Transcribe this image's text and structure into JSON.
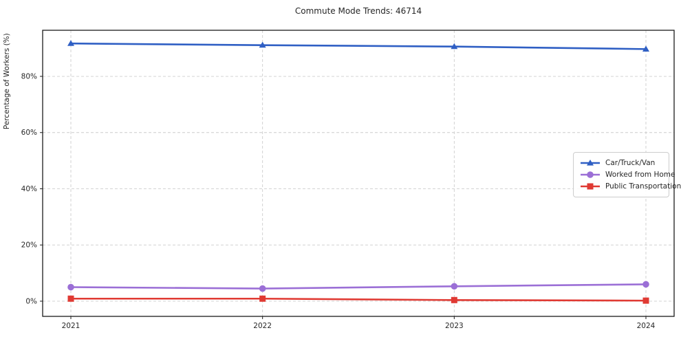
{
  "chart_data": {
    "type": "line",
    "title": "Commute Mode Trends: 46714",
    "xlabel": "",
    "ylabel": "Percentage of Workers (%)",
    "x": [
      2021,
      2022,
      2023,
      2024
    ],
    "xtick_labels": [
      "2021",
      "2022",
      "2023",
      "2024"
    ],
    "yticks": [
      0,
      20,
      40,
      60,
      80
    ],
    "ytick_labels": [
      "0%",
      "20%",
      "40%",
      "60%",
      "80%"
    ],
    "ylim": [
      -5.4,
      96.4
    ],
    "grid": true,
    "grid_style": "dashed",
    "legend_position": "middle-right",
    "series": [
      {
        "name": "Car/Truck/Van",
        "values": [
          91.7,
          91.1,
          90.6,
          89.7
        ],
        "color": "#2f5fc4",
        "marker": "triangle"
      },
      {
        "name": "Worked from Home",
        "values": [
          5.0,
          4.5,
          5.3,
          6.0
        ],
        "color": "#9b6fd6",
        "marker": "circle"
      },
      {
        "name": "Public Transportation",
        "values": [
          0.9,
          0.9,
          0.4,
          0.2
        ],
        "color": "#e03a33",
        "marker": "square"
      }
    ]
  },
  "style_colors": {
    "grid": "#cccccc",
    "axis_border": "#1a1a1a",
    "text": "#262626",
    "background": "#ffffff"
  }
}
